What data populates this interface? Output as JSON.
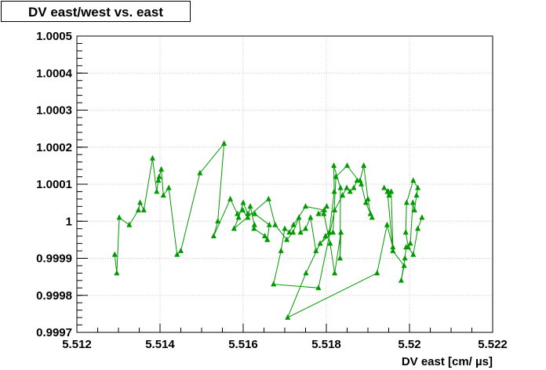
{
  "chart_data": {
    "type": "line",
    "title": "DV east/west vs. east",
    "xlabel": "DV east [cm/ µs]",
    "ylabel": "",
    "xlim": [
      5.512,
      5.522
    ],
    "ylim": [
      0.9997,
      1.0005
    ],
    "xticks": [
      "5.512",
      "5.514",
      "5.516",
      "5.518",
      "5.52",
      "5.522"
    ],
    "yticks": [
      "0.9997",
      "0.9998",
      "0.9999",
      "1",
      "1.0001",
      "1.0002",
      "1.0003",
      "1.0004",
      "1.0005"
    ],
    "grid": true,
    "marker": "triangle",
    "series": [
      {
        "name": "",
        "color": "#009900",
        "x": [
          5.51291,
          5.51296,
          5.51302,
          5.51326,
          5.51348,
          5.51352,
          5.51361,
          5.51382,
          5.51392,
          5.51396,
          5.51398,
          5.51403,
          5.51408,
          5.51421,
          5.51441,
          5.5145,
          5.51496,
          5.51554,
          5.51539,
          5.51529,
          5.51569,
          5.51586,
          5.51599,
          5.51611,
          5.51617,
          5.51627,
          5.51626,
          5.51652,
          5.51658,
          5.51658,
          5.51663,
          5.51628,
          5.51611,
          5.516,
          5.51589,
          5.51578,
          5.51661,
          5.51677,
          5.51705,
          5.5172,
          5.51734,
          5.51738,
          5.5175,
          5.51762,
          5.51775,
          5.51798,
          5.51807,
          5.51819,
          5.51818,
          5.51834,
          5.51833,
          5.51835,
          5.5182,
          5.51809,
          5.51794,
          5.51781,
          5.51801,
          5.51795,
          5.5175,
          5.51721,
          5.51711,
          5.517,
          5.51691,
          5.51673,
          5.51781,
          5.5182,
          5.51839,
          5.51849,
          5.51857,
          5.51866,
          5.51874,
          5.51881,
          5.5189,
          5.519,
          5.51906,
          5.5191,
          5.51895,
          5.51884,
          5.5185,
          5.51823,
          5.51816,
          5.51785,
          5.51751,
          5.51707,
          5.51922,
          5.51946,
          5.5196,
          5.51956,
          5.51951,
          5.51949,
          5.51939,
          5.51947,
          5.5196,
          5.51987,
          5.5198,
          5.51989,
          5.51992,
          5.52002,
          5.52008,
          5.52012,
          5.52017,
          5.5202,
          5.52009,
          5.51993,
          5.51991,
          5.51997,
          5.52009,
          5.5202,
          5.5203
        ],
        "y": [
          0.99991,
          0.99986,
          1.00001,
          0.99999,
          1.00003,
          1.00005,
          1.00003,
          1.00017,
          1.00008,
          1.00011,
          1.00012,
          1.00014,
          1.00007,
          1.00009,
          0.99991,
          0.99992,
          1.00013,
          1.00021,
          1.0,
          0.99996,
          1.00006,
          1.00002,
          1.00003,
          1.00001,
          1.00004,
          0.99999,
          0.99998,
          0.99996,
          0.99995,
          0.99995,
          0.99999,
          1.00002,
          1.00002,
          1.00005,
          1.00001,
          0.99998,
          1.00006,
          0.99999,
          0.99995,
          0.99997,
          1.00001,
          0.99997,
          0.99998,
          1.00001,
          0.99992,
          0.99996,
          0.99997,
          1.00008,
          1.00015,
          1.00009,
          0.9999,
          0.99997,
          0.99986,
          0.99994,
          1.00002,
          1.00002,
          1.00004,
          1.00003,
          1.00004,
          0.99999,
          0.99997,
          0.99998,
          0.99992,
          0.99983,
          0.99982,
          1.00003,
          1.00007,
          1.00009,
          1.00008,
          1.00009,
          1.00011,
          1.00011,
          1.00015,
          1.00006,
          1.00002,
          1.00001,
          1.00005,
          1.0001,
          1.00015,
          1.00012,
          0.99997,
          0.99994,
          0.99986,
          0.99974,
          0.99986,
          0.99999,
          0.99993,
          1.00008,
          1.00007,
          1.00008,
          1.00009,
          1.00008,
          0.99992,
          0.99988,
          0.99984,
          0.9999,
          0.99993,
          0.99994,
          1.00005,
          1.00003,
          1.00007,
          1.00009,
          1.00011,
          1.00005,
          0.99997,
          0.99993,
          0.99991,
          0.99998,
          1.00001
        ]
      }
    ]
  }
}
